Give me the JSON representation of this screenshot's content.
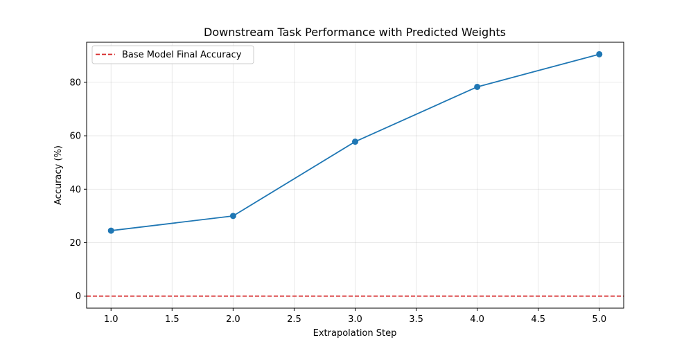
{
  "chart_data": {
    "type": "line",
    "title": "Downstream Task Performance with Predicted Weights",
    "xlabel": "Extrapolation Step",
    "ylabel": "Accuracy (%)",
    "x": [
      1.0,
      2.0,
      3.0,
      4.0,
      5.0
    ],
    "series": [
      {
        "values": [
          24.5,
          30.0,
          57.8,
          78.3,
          90.5
        ],
        "color": "#1f77b4",
        "marker": "circle"
      }
    ],
    "reference_lines": [
      {
        "name": "Base Model Final Accuracy",
        "y": 0,
        "color": "#d62728",
        "style": "dashed"
      }
    ],
    "xlim": [
      0.8,
      5.2
    ],
    "ylim": [
      -4.5,
      95.0
    ],
    "xticks": [
      1.0,
      1.5,
      2.0,
      2.5,
      3.0,
      3.5,
      4.0,
      4.5,
      5.0
    ],
    "xtick_labels": [
      "1.0",
      "1.5",
      "2.0",
      "2.5",
      "3.0",
      "3.5",
      "4.0",
      "4.5",
      "5.0"
    ],
    "yticks": [
      0,
      20,
      40,
      60,
      80
    ],
    "ytick_labels": [
      "0",
      "20",
      "40",
      "60",
      "80"
    ],
    "grid": true,
    "legend": {
      "position": "upper-left",
      "entries": [
        "Base Model Final Accuracy"
      ]
    }
  }
}
